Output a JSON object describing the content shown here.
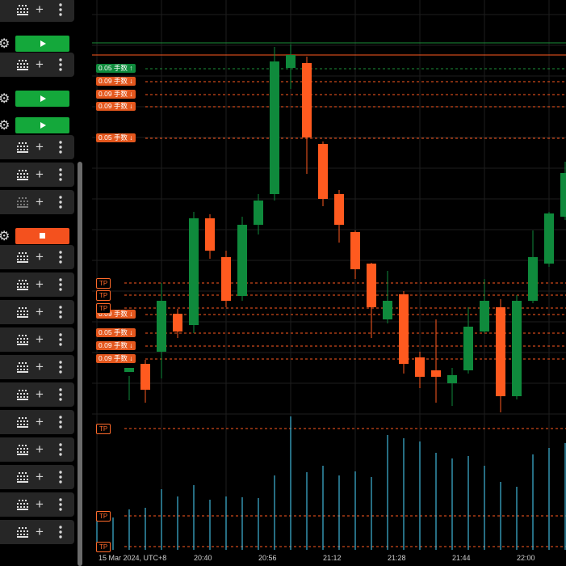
{
  "colors": {
    "bull": "#0f8a3c",
    "bear": "#ff5a1f",
    "play_green": "#14a83b",
    "stop_orange": "#f4511e",
    "volume": "#3fb6d8",
    "level_line": "#ff5a1f",
    "bid_line": "#1b8f3a"
  },
  "sidebar": {
    "rows": [
      {
        "type": "strategy",
        "icons": [
          "grid-icon",
          "plus-icon",
          "more-vertical-icon"
        ],
        "grid_dimmed": false
      },
      {
        "type": "play",
        "button": "play",
        "icon": "play-icon"
      },
      {
        "type": "strategy",
        "icons": [
          "grid-icon",
          "plus-icon",
          "more-vertical-icon"
        ],
        "grid_dimmed": false
      },
      {
        "type": "play",
        "button": "play",
        "icon": "play-icon"
      },
      {
        "type": "play",
        "button": "play",
        "icon": "play-icon"
      },
      {
        "type": "strategy",
        "icons": [
          "grid-icon",
          "plus-icon",
          "more-vertical-icon"
        ],
        "grid_dimmed": false
      },
      {
        "type": "strategy",
        "icons": [
          "grid-icon",
          "plus-icon",
          "more-vertical-icon"
        ],
        "grid_dimmed": false
      },
      {
        "type": "strategy",
        "icons": [
          "grid-icon",
          "plus-icon",
          "more-vertical-icon"
        ],
        "grid_dimmed": true
      },
      {
        "type": "play",
        "button": "stop",
        "icon": "stop-icon"
      },
      {
        "type": "strategy",
        "icons": [
          "grid-icon",
          "plus-icon",
          "more-vertical-icon"
        ],
        "grid_dimmed": false
      },
      {
        "type": "strategy",
        "icons": [
          "grid-icon",
          "plus-icon",
          "more-vertical-icon"
        ],
        "grid_dimmed": false
      },
      {
        "type": "strategy",
        "icons": [
          "grid-icon",
          "plus-icon",
          "more-vertical-icon"
        ],
        "grid_dimmed": false
      },
      {
        "type": "strategy",
        "icons": [
          "grid-icon",
          "plus-icon",
          "more-vertical-icon"
        ],
        "grid_dimmed": false
      },
      {
        "type": "strategy",
        "icons": [
          "grid-icon",
          "plus-icon",
          "more-vertical-icon"
        ],
        "grid_dimmed": false
      },
      {
        "type": "strategy",
        "icons": [
          "grid-icon",
          "plus-icon",
          "more-vertical-icon"
        ],
        "grid_dimmed": false
      },
      {
        "type": "strategy",
        "icons": [
          "grid-icon",
          "plus-icon",
          "more-vertical-icon"
        ],
        "grid_dimmed": false
      },
      {
        "type": "strategy",
        "icons": [
          "grid-icon",
          "plus-icon",
          "more-vertical-icon"
        ],
        "grid_dimmed": false
      },
      {
        "type": "strategy",
        "icons": [
          "grid-icon",
          "plus-icon",
          "more-vertical-icon"
        ],
        "grid_dimmed": false
      },
      {
        "type": "strategy",
        "icons": [
          "grid-icon",
          "plus-icon",
          "more-vertical-icon"
        ],
        "grid_dimmed": false
      },
      {
        "type": "strategy",
        "icons": [
          "grid-icon",
          "plus-icon",
          "more-vertical-icon"
        ],
        "grid_dimmed": false
      }
    ]
  },
  "chart": {
    "order_labels": [
      {
        "text": "0.05 手数 ↑",
        "side": "buy"
      },
      {
        "text": "0.09 手数 ↓",
        "side": "sell"
      },
      {
        "text": "0.09 手数 ↓",
        "side": "sell"
      },
      {
        "text": "0.09 手数 ↓",
        "side": "sell"
      },
      {
        "text": "0.05 手数 ↓",
        "side": "sell"
      },
      {
        "text": "0.09 手数 ↓",
        "side": "sell"
      },
      {
        "text": "0.05 手数 ↓",
        "side": "sell"
      },
      {
        "text": "0.09 手数 ↓",
        "side": "sell"
      },
      {
        "text": "0.09 手数 ↓",
        "side": "sell"
      }
    ],
    "tp_label": "TP",
    "tp_count": 6,
    "time_axis": {
      "date": "15 Mar 2024, UTC+8",
      "ticks": [
        "20:40",
        "20:56",
        "21:12",
        "21:28",
        "21:44",
        "22:00"
      ]
    },
    "candles": [
      {
        "color": "bull"
      },
      {
        "color": "bear"
      },
      {
        "color": "bull"
      },
      {
        "color": "bear"
      },
      {
        "color": "bull"
      },
      {
        "color": "bear"
      },
      {
        "color": "bear"
      },
      {
        "color": "bull"
      },
      {
        "color": "bull"
      },
      {
        "color": "bull"
      },
      {
        "color": "bull"
      },
      {
        "color": "bear"
      },
      {
        "color": "bear"
      },
      {
        "color": "bear"
      },
      {
        "color": "bear"
      },
      {
        "color": "bear"
      },
      {
        "color": "bull"
      },
      {
        "color": "bear"
      },
      {
        "color": "bear"
      },
      {
        "color": "bear"
      },
      {
        "color": "bull"
      },
      {
        "color": "bull"
      },
      {
        "color": "bull"
      },
      {
        "color": "bear"
      },
      {
        "color": "bull"
      },
      {
        "color": "bull"
      },
      {
        "color": "bull"
      },
      {
        "color": "bull"
      }
    ]
  }
}
